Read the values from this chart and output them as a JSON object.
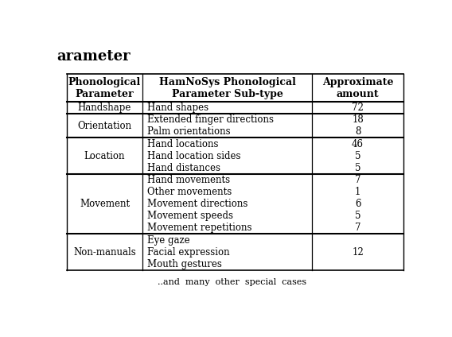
{
  "col_headers": [
    "Phonological\nParameter",
    "HamNoSys Phonological\nParameter Sub-type",
    "Approximate\namount"
  ],
  "rows": [
    {
      "param": "Handshape",
      "subtypes": [
        "Hand shapes"
      ],
      "amounts": [
        "72"
      ]
    },
    {
      "param": "Orientation",
      "subtypes": [
        "Extended finger directions",
        "Palm orientations"
      ],
      "amounts": [
        "18",
        "8"
      ]
    },
    {
      "param": "Location",
      "subtypes": [
        "Hand locations",
        "Hand location sides",
        "Hand distances"
      ],
      "amounts": [
        "46",
        "5",
        "5"
      ]
    },
    {
      "param": "Movement",
      "subtypes": [
        "Hand movements",
        "Other movements",
        "Movement directions",
        "Movement speeds",
        "Movement repetitions"
      ],
      "amounts": [
        "7",
        "1",
        "6",
        "5",
        "7"
      ]
    },
    {
      "param": "Non-manuals",
      "subtypes": [
        "Eye gaze",
        "Facial expression",
        "Mouth gestures"
      ],
      "amounts": [
        "",
        "12",
        ""
      ]
    }
  ],
  "footer": "..and  many  other  special  cases",
  "bg_color": "#ffffff",
  "text_color": "#000000",
  "font_size": 8.5,
  "header_font_size": 9.0,
  "title_text": "arameter",
  "title_fontsize": 13
}
